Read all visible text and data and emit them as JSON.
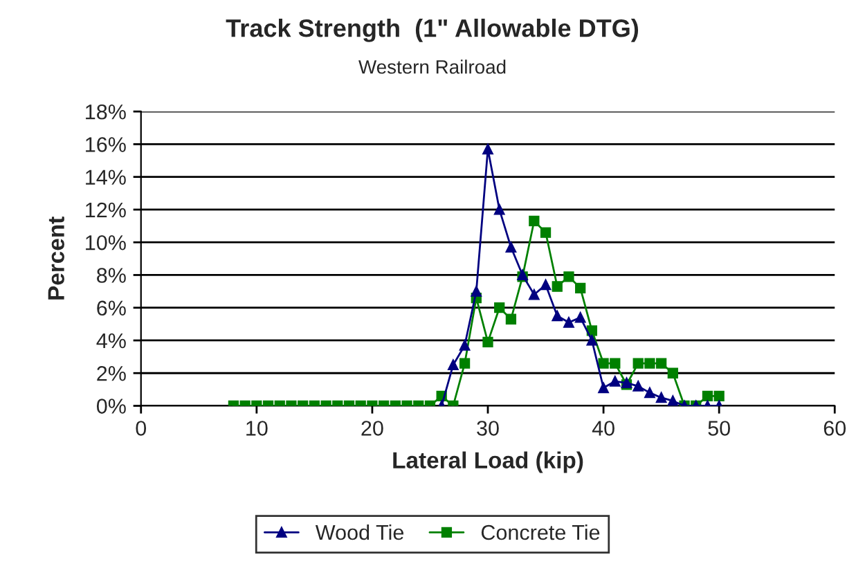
{
  "chart_data": {
    "type": "line",
    "title": "Track Strength  (1\" Allowable DTG)",
    "subtitle": "Western Railroad",
    "xlabel": "Lateral Load (kip)",
    "ylabel": "Percent",
    "xlim": [
      0,
      60
    ],
    "xticks": [
      0,
      10,
      20,
      30,
      40,
      50,
      60
    ],
    "ylim": [
      0,
      18
    ],
    "yticks": [
      {
        "value": 0,
        "label": "0%"
      },
      {
        "value": 2,
        "label": "2%"
      },
      {
        "value": 4,
        "label": "4%"
      },
      {
        "value": 6,
        "label": "6%"
      },
      {
        "value": 8,
        "label": "8%"
      },
      {
        "value": 10,
        "label": "10%"
      },
      {
        "value": 12,
        "label": "12%"
      },
      {
        "value": 14,
        "label": "14%"
      },
      {
        "value": 16,
        "label": "16%"
      },
      {
        "value": 18,
        "label": "18%"
      }
    ],
    "grid": "y",
    "legend": "bottom",
    "series": [
      {
        "name": "Wood Tie",
        "color": "#000080",
        "marker": "triangle",
        "x": [
          26,
          27,
          28,
          29,
          30,
          31,
          32,
          33,
          34,
          35,
          36,
          37,
          38,
          39,
          40,
          41,
          42,
          43,
          44,
          45,
          46,
          47,
          48,
          49,
          50
        ],
        "values": [
          0,
          2.5,
          3.7,
          7.0,
          15.7,
          12.0,
          9.7,
          8.0,
          6.8,
          7.4,
          5.5,
          5.1,
          5.4,
          4.0,
          1.1,
          1.5,
          1.4,
          1.2,
          0.8,
          0.5,
          0.3,
          0,
          0,
          0,
          0
        ]
      },
      {
        "name": "Concrete Tie",
        "color": "#008000",
        "marker": "square",
        "x": [
          8,
          9,
          10,
          11,
          12,
          13,
          14,
          15,
          16,
          17,
          18,
          19,
          20,
          21,
          22,
          23,
          24,
          25,
          26,
          27,
          28,
          29,
          30,
          31,
          32,
          33,
          34,
          35,
          36,
          37,
          38,
          39,
          40,
          41,
          42,
          43,
          44,
          45,
          46,
          47,
          48,
          49,
          50
        ],
        "values": [
          0,
          0,
          0,
          0,
          0,
          0,
          0,
          0,
          0,
          0,
          0,
          0,
          0,
          0,
          0,
          0,
          0,
          0,
          0.6,
          0,
          2.6,
          6.6,
          3.9,
          6.0,
          5.3,
          7.9,
          11.3,
          10.6,
          7.3,
          7.9,
          7.2,
          4.6,
          2.6,
          2.6,
          1.3,
          2.6,
          2.6,
          2.6,
          2.0,
          0,
          0,
          0.6,
          0.6
        ]
      }
    ]
  }
}
